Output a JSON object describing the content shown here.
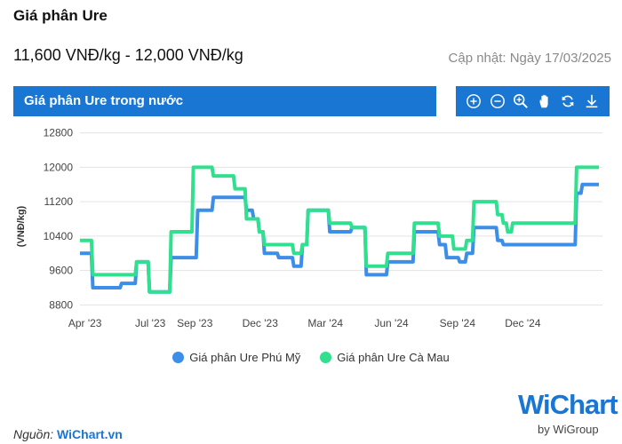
{
  "page": {
    "title": "Giá phân Ure",
    "price_range": "11,600 VNĐ/kg - 12,000 VNĐ/kg",
    "updated": "Cập nhật: Ngày 17/03/2025",
    "chart_title": "Giá phân Ure trong nước",
    "source_prefix": "Nguồn:",
    "source_name": "WiChart.vn",
    "logo_text": "WiChart",
    "logo_sub": "by WiGroup",
    "toolbar_icons": [
      "zoom-in-icon",
      "zoom-out-icon",
      "magnify-icon",
      "pan-hand-icon",
      "reset-icon",
      "download-icon"
    ]
  },
  "chart_data": {
    "type": "line",
    "ylabel": "(VNĐ/kg)",
    "ylim": [
      8600,
      13000
    ],
    "yticks": [
      8800,
      9600,
      10400,
      11200,
      12000,
      12800
    ],
    "xlim": [
      "2023-03-25",
      "2025-03-22"
    ],
    "xticks": [
      {
        "date": "2023-04-01",
        "label": "Apr '23"
      },
      {
        "date": "2023-07-01",
        "label": "Jul '23"
      },
      {
        "date": "2023-09-01",
        "label": "Sep '23"
      },
      {
        "date": "2023-12-01",
        "label": "Dec '23"
      },
      {
        "date": "2024-03-01",
        "label": "Mar '24"
      },
      {
        "date": "2024-06-01",
        "label": "Jun '24"
      },
      {
        "date": "2024-09-01",
        "label": "Sep '24"
      },
      {
        "date": "2024-12-01",
        "label": "Dec '24"
      }
    ],
    "series": [
      {
        "name": "Giá phân Ure Phú Mỹ",
        "color": "#3c8ee8",
        "points": [
          [
            "2023-03-25",
            10000
          ],
          [
            "2023-04-10",
            10000
          ],
          [
            "2023-04-12",
            9200
          ],
          [
            "2023-05-20",
            9200
          ],
          [
            "2023-05-22",
            9300
          ],
          [
            "2023-06-10",
            9300
          ],
          [
            "2023-06-12",
            9800
          ],
          [
            "2023-06-28",
            9800
          ],
          [
            "2023-06-30",
            9100
          ],
          [
            "2023-07-28",
            9100
          ],
          [
            "2023-07-30",
            9900
          ],
          [
            "2023-09-03",
            9900
          ],
          [
            "2023-09-05",
            11000
          ],
          [
            "2023-09-25",
            11000
          ],
          [
            "2023-09-27",
            11300
          ],
          [
            "2023-11-10",
            11300
          ],
          [
            "2023-11-12",
            11000
          ],
          [
            "2023-11-20",
            11000
          ],
          [
            "2023-11-22",
            10800
          ],
          [
            "2023-11-28",
            10800
          ],
          [
            "2023-11-30",
            10500
          ],
          [
            "2023-12-05",
            10500
          ],
          [
            "2023-12-07",
            10000
          ],
          [
            "2023-12-25",
            10000
          ],
          [
            "2023-12-27",
            9900
          ],
          [
            "2024-01-15",
            9900
          ],
          [
            "2024-01-17",
            9700
          ],
          [
            "2024-01-27",
            9700
          ],
          [
            "2024-01-29",
            10200
          ],
          [
            "2024-02-04",
            10200
          ],
          [
            "2024-02-06",
            11000
          ],
          [
            "2024-03-05",
            11000
          ],
          [
            "2024-03-07",
            10500
          ],
          [
            "2024-04-05",
            10500
          ],
          [
            "2024-04-07",
            10600
          ],
          [
            "2024-04-25",
            10600
          ],
          [
            "2024-04-27",
            9500
          ],
          [
            "2024-05-25",
            9500
          ],
          [
            "2024-05-27",
            9800
          ],
          [
            "2024-07-01",
            9800
          ],
          [
            "2024-07-03",
            10500
          ],
          [
            "2024-08-05",
            10500
          ],
          [
            "2024-08-07",
            10200
          ],
          [
            "2024-08-15",
            10200
          ],
          [
            "2024-08-17",
            9900
          ],
          [
            "2024-09-02",
            9900
          ],
          [
            "2024-09-04",
            9800
          ],
          [
            "2024-09-12",
            9800
          ],
          [
            "2024-09-14",
            10000
          ],
          [
            "2024-09-22",
            10000
          ],
          [
            "2024-09-24",
            10600
          ],
          [
            "2024-10-25",
            10600
          ],
          [
            "2024-10-27",
            10300
          ],
          [
            "2024-11-02",
            10300
          ],
          [
            "2024-11-04",
            10200
          ],
          [
            "2025-02-12",
            10200
          ],
          [
            "2025-02-14",
            11400
          ],
          [
            "2025-02-20",
            11400
          ],
          [
            "2025-02-22",
            11600
          ],
          [
            "2025-03-17",
            11600
          ]
        ]
      },
      {
        "name": "Giá phân Ure Cà Mau",
        "color": "#30e08e",
        "points": [
          [
            "2023-03-25",
            10300
          ],
          [
            "2023-04-10",
            10300
          ],
          [
            "2023-04-12",
            9500
          ],
          [
            "2023-06-10",
            9500
          ],
          [
            "2023-06-12",
            9800
          ],
          [
            "2023-06-28",
            9800
          ],
          [
            "2023-06-30",
            9100
          ],
          [
            "2023-07-28",
            9100
          ],
          [
            "2023-07-30",
            10500
          ],
          [
            "2023-08-28",
            10500
          ],
          [
            "2023-08-30",
            12000
          ],
          [
            "2023-09-25",
            12000
          ],
          [
            "2023-09-27",
            11800
          ],
          [
            "2023-10-25",
            11800
          ],
          [
            "2023-10-27",
            11500
          ],
          [
            "2023-11-10",
            11500
          ],
          [
            "2023-11-12",
            10800
          ],
          [
            "2023-11-28",
            10800
          ],
          [
            "2023-11-30",
            10500
          ],
          [
            "2023-12-05",
            10500
          ],
          [
            "2023-12-07",
            10200
          ],
          [
            "2024-01-15",
            10200
          ],
          [
            "2024-01-17",
            10000
          ],
          [
            "2024-01-27",
            10000
          ],
          [
            "2024-01-29",
            10200
          ],
          [
            "2024-02-04",
            10200
          ],
          [
            "2024-02-06",
            11000
          ],
          [
            "2024-03-05",
            11000
          ],
          [
            "2024-03-07",
            10700
          ],
          [
            "2024-04-05",
            10700
          ],
          [
            "2024-04-07",
            10600
          ],
          [
            "2024-04-25",
            10600
          ],
          [
            "2024-04-27",
            9700
          ],
          [
            "2024-05-25",
            9700
          ],
          [
            "2024-05-27",
            10000
          ],
          [
            "2024-07-01",
            10000
          ],
          [
            "2024-07-03",
            10700
          ],
          [
            "2024-08-05",
            10700
          ],
          [
            "2024-08-07",
            10400
          ],
          [
            "2024-08-25",
            10400
          ],
          [
            "2024-08-27",
            10100
          ],
          [
            "2024-09-12",
            10100
          ],
          [
            "2024-09-14",
            10300
          ],
          [
            "2024-09-22",
            10300
          ],
          [
            "2024-09-24",
            11200
          ],
          [
            "2024-10-25",
            11200
          ],
          [
            "2024-10-27",
            10900
          ],
          [
            "2024-11-02",
            10900
          ],
          [
            "2024-11-04",
            10700
          ],
          [
            "2024-11-08",
            10700
          ],
          [
            "2024-11-10",
            10500
          ],
          [
            "2024-11-15",
            10500
          ],
          [
            "2024-11-17",
            10700
          ],
          [
            "2025-02-12",
            10700
          ],
          [
            "2025-02-14",
            12000
          ],
          [
            "2025-03-17",
            12000
          ]
        ]
      }
    ]
  }
}
